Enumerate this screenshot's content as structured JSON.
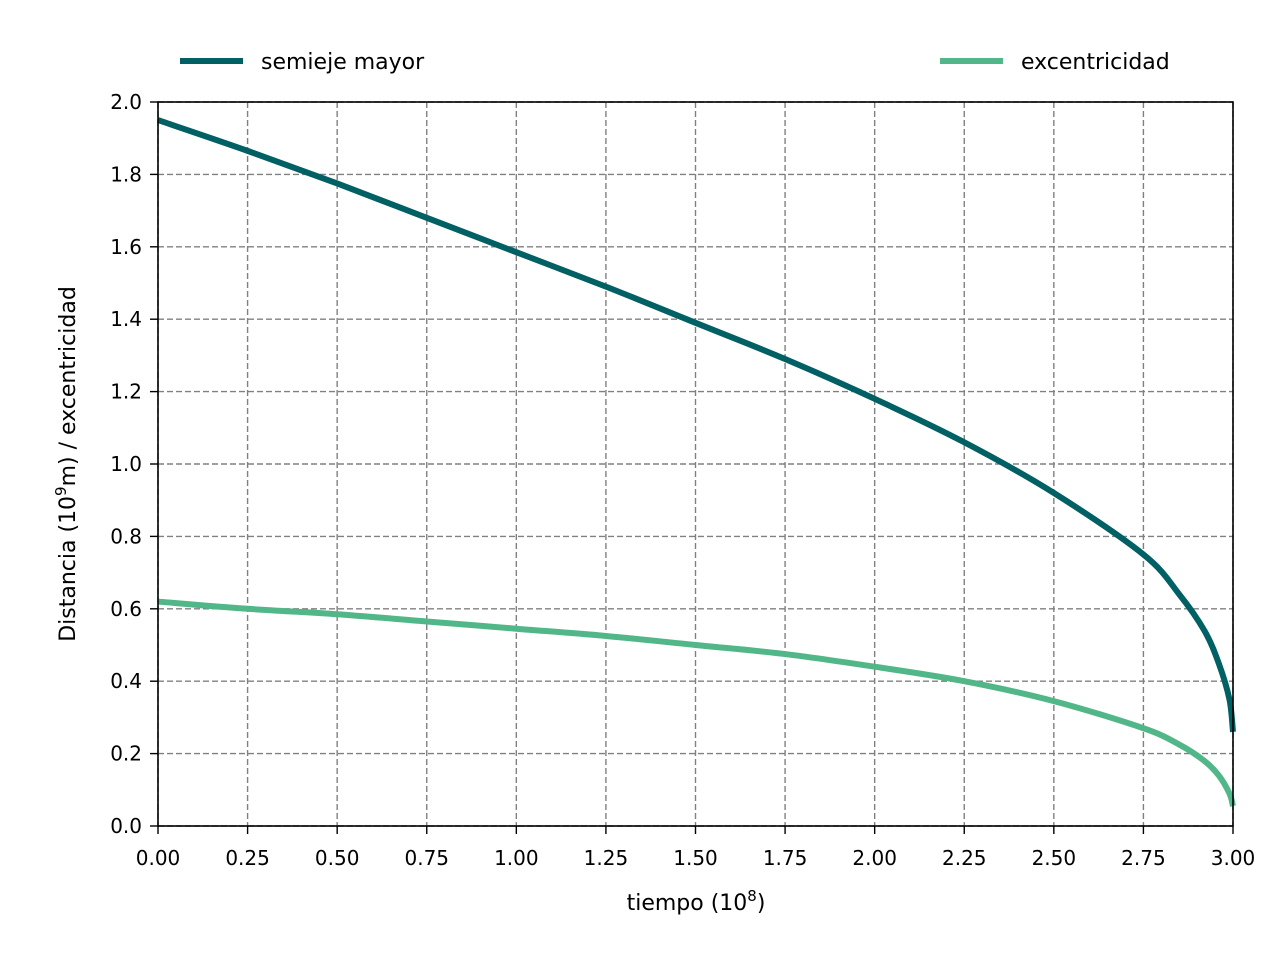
{
  "chart_data": {
    "type": "line",
    "title": "",
    "xlabel": "tiempo (10",
    "xlabel_sup": "8",
    "xlabel_end": ")",
    "ylabel": "Distancia (10",
    "ylabel_sup": "9",
    "ylabel_end": "m) / excentricidad",
    "xlim": [
      0,
      3
    ],
    "ylim": [
      0,
      2
    ],
    "xticks": [
      "0.00",
      "0.25",
      "0.50",
      "0.75",
      "1.00",
      "1.25",
      "1.50",
      "1.75",
      "2.00",
      "2.25",
      "2.50",
      "2.75",
      "3.00"
    ],
    "yticks": [
      "0.0",
      "0.2",
      "0.4",
      "0.6",
      "0.8",
      "1.0",
      "1.2",
      "1.4",
      "1.6",
      "1.8",
      "2.0"
    ],
    "grid": true,
    "legend_position": "top, outside plot",
    "series": [
      {
        "name": "semieje mayor",
        "color": "#006064",
        "x": [
          0,
          0.25,
          0.5,
          0.75,
          1.0,
          1.25,
          1.5,
          1.75,
          2.0,
          2.25,
          2.5,
          2.75,
          2.85,
          2.92,
          2.96,
          2.99,
          3.0
        ],
        "y": [
          1.95,
          1.865,
          1.775,
          1.68,
          1.585,
          1.49,
          1.39,
          1.29,
          1.18,
          1.06,
          0.92,
          0.75,
          0.64,
          0.54,
          0.45,
          0.35,
          0.26
        ]
      },
      {
        "name": "excentricidad",
        "color": "#52b788",
        "x": [
          0,
          0.25,
          0.5,
          0.75,
          1.0,
          1.25,
          1.5,
          1.75,
          2.0,
          2.25,
          2.5,
          2.75,
          2.85,
          2.92,
          2.96,
          2.99,
          3.0
        ],
        "y": [
          0.62,
          0.6,
          0.585,
          0.565,
          0.545,
          0.525,
          0.5,
          0.475,
          0.44,
          0.4,
          0.345,
          0.27,
          0.225,
          0.18,
          0.14,
          0.09,
          0.055
        ]
      }
    ]
  }
}
